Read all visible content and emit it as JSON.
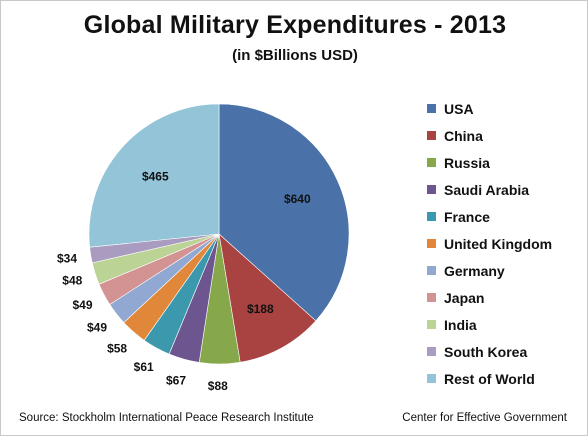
{
  "title": "Global Military Expenditures - 2013",
  "subtitle": "(in $Billions USD)",
  "source": "Source: Stockholm International Peace Research Institute",
  "credit": "Center for Effective Government",
  "chart_data": {
    "type": "pie",
    "title": "Global Military Expenditures - 2013",
    "subtitle": "(in $Billions USD)",
    "legend_position": "right",
    "slices": [
      {
        "label": "USA",
        "value": 640,
        "data_label": "$640",
        "color": "#4a72a8"
      },
      {
        "label": "China",
        "value": 188,
        "data_label": "$188",
        "color": "#a84342"
      },
      {
        "label": "Russia",
        "value": 88,
        "data_label": "$88",
        "color": "#87a84a"
      },
      {
        "label": "Saudi Arabia",
        "value": 67,
        "data_label": "$67",
        "color": "#6d5590"
      },
      {
        "label": "France",
        "value": 61,
        "data_label": "$61",
        "color": "#3c99ad"
      },
      {
        "label": "United Kingdom",
        "value": 58,
        "data_label": "$58",
        "color": "#e0873a"
      },
      {
        "label": "Germany",
        "value": 49,
        "data_label": "$49",
        "color": "#90a8d2"
      },
      {
        "label": "Japan",
        "value": 49,
        "data_label": "$49",
        "color": "#d39392"
      },
      {
        "label": "India",
        "value": 48,
        "data_label": "$48",
        "color": "#bcd396"
      },
      {
        "label": "South Korea",
        "value": 34,
        "data_label": "$34",
        "color": "#a99cc0"
      },
      {
        "label": "Rest of World",
        "value": 465,
        "data_label": "$465",
        "color": "#93c4d8"
      }
    ]
  }
}
